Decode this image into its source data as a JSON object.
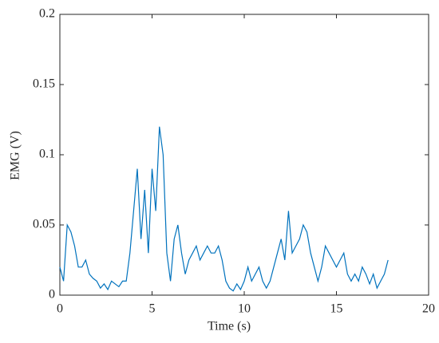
{
  "chart_data": {
    "type": "line",
    "xlabel": "Time (s)",
    "ylabel": "EMG (V)",
    "xlim": [
      0,
      20
    ],
    "xticks": [
      0,
      5,
      10,
      15,
      20
    ],
    "ylim": [
      0,
      0.2
    ],
    "yticks": [
      0,
      0.05,
      0.1,
      0.15,
      0.2
    ],
    "box": true,
    "x": [
      0,
      0.2,
      0.4,
      0.6,
      0.8,
      1,
      1.2,
      1.4,
      1.6,
      1.8,
      2,
      2.2,
      2.4,
      2.6,
      2.8,
      3,
      3.2,
      3.4,
      3.6,
      3.8,
      4,
      4.2,
      4.4,
      4.6,
      4.8,
      5,
      5.2,
      5.4,
      5.6,
      5.8,
      6,
      6.2,
      6.4,
      6.6,
      6.8,
      7,
      7.2,
      7.4,
      7.6,
      7.8,
      8,
      8.2,
      8.4,
      8.6,
      8.8,
      9,
      9.2,
      9.4,
      9.6,
      9.8,
      10,
      10.2,
      10.4,
      10.6,
      10.8,
      11,
      11.2,
      11.4,
      11.6,
      11.8,
      12,
      12.2,
      12.4,
      12.6,
      12.8,
      13,
      13.2,
      13.4,
      13.6,
      13.8,
      14,
      14.2,
      14.4,
      14.6,
      14.8,
      15,
      15.2,
      15.4,
      15.6,
      15.8,
      16,
      16.2,
      16.4,
      16.6,
      16.8,
      17,
      17.2,
      17.4,
      17.6,
      17.8
    ],
    "series": [
      {
        "color": "#0072bd",
        "values": [
          0.02,
          0.01,
          0.05,
          0.045,
          0.035,
          0.02,
          0.02,
          0.025,
          0.015,
          0.012,
          0.01,
          0.005,
          0.008,
          0.004,
          0.01,
          0.008,
          0.006,
          0.01,
          0.01,
          0.03,
          0.06,
          0.09,
          0.04,
          0.075,
          0.03,
          0.09,
          0.06,
          0.12,
          0.1,
          0.03,
          0.01,
          0.04,
          0.05,
          0.03,
          0.015,
          0.025,
          0.03,
          0.035,
          0.025,
          0.03,
          0.035,
          0.03,
          0.03,
          0.035,
          0.025,
          0.01,
          0.005,
          0.003,
          0.008,
          0.004,
          0.01,
          0.02,
          0.01,
          0.015,
          0.02,
          0.01,
          0.005,
          0.01,
          0.02,
          0.03,
          0.04,
          0.025,
          0.06,
          0.03,
          0.035,
          0.04,
          0.05,
          0.045,
          0.03,
          0.02,
          0.01,
          0.02,
          0.035,
          0.03,
          0.025,
          0.02,
          0.025,
          0.03,
          0.015,
          0.01,
          0.015,
          0.01,
          0.02,
          0.015,
          0.008,
          0.015,
          0.005,
          0.01,
          0.015,
          0.025
        ]
      }
    ]
  }
}
